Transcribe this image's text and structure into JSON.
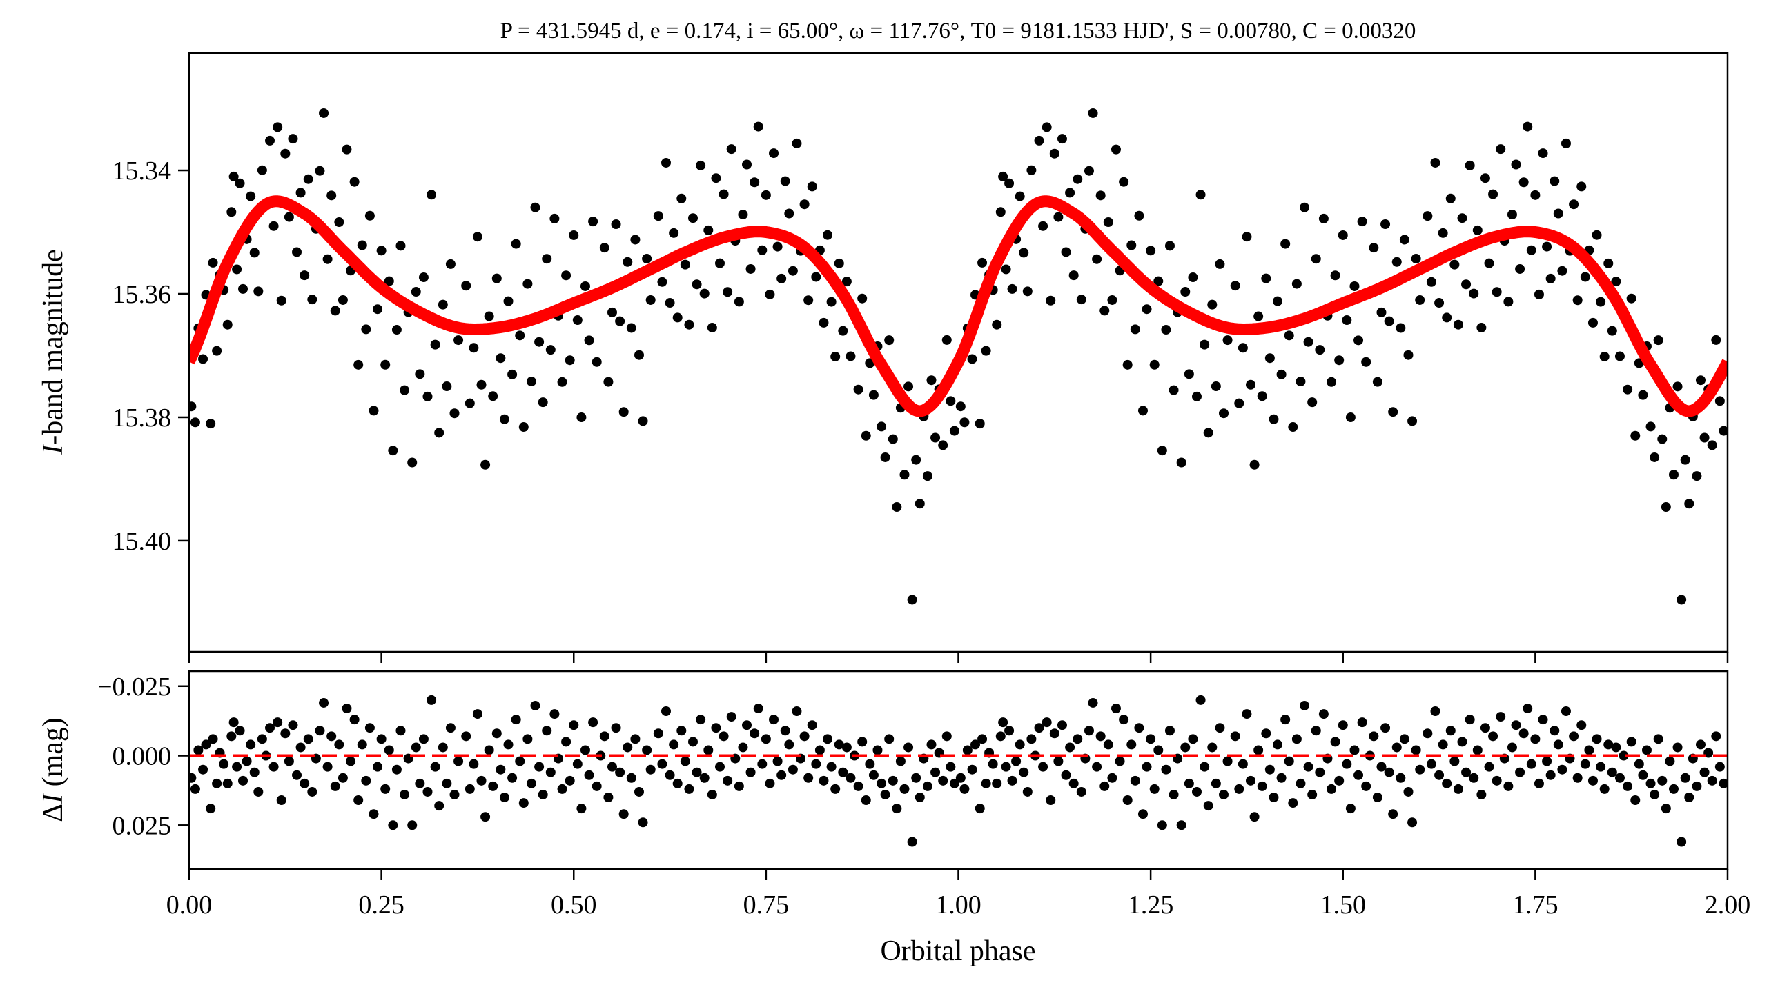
{
  "chart_data": [
    {
      "type": "scatter",
      "panel": "light-curve",
      "title": "P = 431.5945 d, e = 0.174, i = 65.00°, ω = 117.76°, T0 = 9181.1533 HJD', S = 0.00780, C = 0.00320",
      "xlabel": "Orbital phase",
      "ylabel_italic": "I",
      "ylabel_rest": "-band magnitude",
      "xlim": [
        0,
        2
      ],
      "ylim": [
        15.418,
        15.321
      ],
      "yticks": [
        "15.34",
        "15.36",
        "15.38",
        "15.40"
      ],
      "ytick_values": [
        15.34,
        15.36,
        15.38,
        15.4
      ],
      "xtick_values": [
        0,
        0.25,
        0.5,
        0.75,
        1,
        1.25,
        1.5,
        1.75,
        2
      ],
      "point_color": "#000000",
      "model_color": "#ff0000",
      "model_phase": [
        0,
        0.05,
        0.1,
        0.15,
        0.2,
        0.25,
        0.3,
        0.35,
        0.4,
        0.45,
        0.5,
        0.55,
        0.6,
        0.65,
        0.7,
        0.75,
        0.8,
        0.85,
        0.9,
        0.95,
        1.0
      ],
      "model_mag": [
        15.371,
        15.355,
        15.3455,
        15.347,
        15.353,
        15.359,
        15.363,
        15.3655,
        15.3655,
        15.364,
        15.3615,
        15.359,
        15.356,
        15.353,
        15.3507,
        15.35,
        15.3525,
        15.36,
        15.3715,
        15.379,
        15.371
      ],
      "note": "points = model + residual, repeated at phase+1"
    },
    {
      "type": "scatter",
      "panel": "residuals",
      "ylabel_delta": "Δ",
      "ylabel_italic": "I",
      "ylabel_rest": " (mag)",
      "xlabel": "Orbital phase",
      "xlim": [
        0,
        2
      ],
      "ylim": [
        0.0408,
        -0.0304
      ],
      "yticks": [
        "−0.025",
        "0.000",
        "0.025"
      ],
      "ytick_values": [
        -0.025,
        0,
        0.025
      ],
      "xticks": [
        "0.00",
        "0.25",
        "0.50",
        "0.75",
        "1.00",
        "1.25",
        "1.50",
        "1.75",
        "2.00"
      ],
      "zero_line_color": "#ff0000",
      "points": [
        [
          0.003,
          0.008
        ],
        [
          0.008,
          0.012
        ],
        [
          0.012,
          -0.002
        ],
        [
          0.018,
          0.005
        ],
        [
          0.022,
          -0.004
        ],
        [
          0.028,
          0.019
        ],
        [
          0.031,
          -0.006
        ],
        [
          0.036,
          0.01
        ],
        [
          0.04,
          -0.001
        ],
        [
          0.045,
          0.003
        ],
        [
          0.05,
          0.01
        ],
        [
          0.055,
          -0.007
        ],
        [
          0.058,
          -0.012
        ],
        [
          0.062,
          0.004
        ],
        [
          0.066,
          -0.009
        ],
        [
          0.07,
          0.009
        ],
        [
          0.075,
          0.002
        ],
        [
          0.08,
          -0.004
        ],
        [
          0.085,
          0.006
        ],
        [
          0.09,
          0.013
        ],
        [
          0.095,
          -0.006
        ],
        [
          0.1,
          0.0
        ],
        [
          0.105,
          -0.01
        ],
        [
          0.11,
          0.004
        ],
        [
          0.115,
          -0.012
        ],
        [
          0.12,
          0.016
        ],
        [
          0.125,
          -0.008
        ],
        [
          0.13,
          0.002
        ],
        [
          0.135,
          -0.011
        ],
        [
          0.14,
          0.007
        ],
        [
          0.145,
          -0.003
        ],
        [
          0.15,
          0.01
        ],
        [
          0.155,
          -0.006
        ],
        [
          0.16,
          0.013
        ],
        [
          0.165,
          0.001
        ],
        [
          0.17,
          -0.009
        ],
        [
          0.175,
          -0.019
        ],
        [
          0.18,
          0.004
        ],
        [
          0.185,
          -0.007
        ],
        [
          0.19,
          0.011
        ],
        [
          0.195,
          -0.004
        ],
        [
          0.2,
          0.008
        ],
        [
          0.205,
          -0.017
        ],
        [
          0.21,
          0.002
        ],
        [
          0.215,
          -0.013
        ],
        [
          0.22,
          0.016
        ],
        [
          0.225,
          -0.004
        ],
        [
          0.23,
          0.009
        ],
        [
          0.235,
          -0.01
        ],
        [
          0.24,
          0.021
        ],
        [
          0.245,
          0.004
        ],
        [
          0.25,
          -0.006
        ],
        [
          0.255,
          0.012
        ],
        [
          0.26,
          -0.002
        ],
        [
          0.265,
          0.025
        ],
        [
          0.27,
          0.005
        ],
        [
          0.275,
          -0.009
        ],
        [
          0.28,
          0.014
        ],
        [
          0.285,
          0.001
        ],
        [
          0.29,
          0.025
        ],
        [
          0.295,
          -0.003
        ],
        [
          0.3,
          0.01
        ],
        [
          0.305,
          -0.006
        ],
        [
          0.31,
          0.013
        ],
        [
          0.315,
          -0.02
        ],
        [
          0.32,
          0.004
        ],
        [
          0.325,
          0.018
        ],
        [
          0.33,
          -0.003
        ],
        [
          0.335,
          0.01
        ],
        [
          0.34,
          -0.01
        ],
        [
          0.345,
          0.014
        ],
        [
          0.35,
          0.002
        ],
        [
          0.36,
          -0.007
        ],
        [
          0.365,
          0.012
        ],
        [
          0.37,
          0.003
        ],
        [
          0.375,
          -0.015
        ],
        [
          0.38,
          0.009
        ],
        [
          0.385,
          0.022
        ],
        [
          0.39,
          -0.002
        ],
        [
          0.395,
          0.011
        ],
        [
          0.4,
          -0.008
        ],
        [
          0.405,
          0.005
        ],
        [
          0.41,
          0.015
        ],
        [
          0.415,
          -0.004
        ],
        [
          0.42,
          0.008
        ],
        [
          0.425,
          -0.013
        ],
        [
          0.43,
          0.002
        ],
        [
          0.435,
          0.017
        ],
        [
          0.44,
          -0.006
        ],
        [
          0.445,
          0.01
        ],
        [
          0.45,
          -0.018
        ],
        [
          0.455,
          0.004
        ],
        [
          0.46,
          0.014
        ],
        [
          0.465,
          -0.009
        ],
        [
          0.47,
          0.006
        ],
        [
          0.475,
          -0.015
        ],
        [
          0.48,
          0.001
        ],
        [
          0.485,
          0.012
        ],
        [
          0.49,
          -0.005
        ],
        [
          0.495,
          0.009
        ],
        [
          0.5,
          -0.011
        ],
        [
          0.505,
          0.003
        ],
        [
          0.51,
          0.019
        ],
        [
          0.515,
          -0.002
        ],
        [
          0.52,
          0.007
        ],
        [
          0.525,
          -0.012
        ],
        [
          0.53,
          0.011
        ],
        [
          0.535,
          0.0
        ],
        [
          0.54,
          -0.007
        ],
        [
          0.545,
          0.015
        ],
        [
          0.55,
          0.004
        ],
        [
          0.555,
          -0.01
        ],
        [
          0.56,
          0.006
        ],
        [
          0.565,
          0.021
        ],
        [
          0.57,
          -0.003
        ],
        [
          0.575,
          0.008
        ],
        [
          0.58,
          -0.006
        ],
        [
          0.585,
          0.013
        ],
        [
          0.59,
          0.024
        ],
        [
          0.595,
          -0.002
        ],
        [
          0.6,
          0.005
        ],
        [
          0.61,
          -0.008
        ],
        [
          0.615,
          0.003
        ],
        [
          0.62,
          -0.016
        ],
        [
          0.625,
          0.007
        ],
        [
          0.63,
          -0.004
        ],
        [
          0.635,
          0.01
        ],
        [
          0.64,
          -0.009
        ],
        [
          0.645,
          0.002
        ],
        [
          0.65,
          0.012
        ],
        [
          0.655,
          -0.005
        ],
        [
          0.66,
          0.006
        ],
        [
          0.665,
          -0.013
        ],
        [
          0.67,
          0.008
        ],
        [
          0.675,
          -0.002
        ],
        [
          0.68,
          0.014
        ],
        [
          0.685,
          -0.01
        ],
        [
          0.69,
          0.004
        ],
        [
          0.695,
          -0.007
        ],
        [
          0.7,
          0.009
        ],
        [
          0.705,
          -0.014
        ],
        [
          0.71,
          0.001
        ],
        [
          0.715,
          0.011
        ],
        [
          0.72,
          -0.003
        ],
        [
          0.725,
          -0.011
        ],
        [
          0.73,
          0.006
        ],
        [
          0.735,
          -0.008
        ],
        [
          0.74,
          -0.017
        ],
        [
          0.745,
          0.003
        ],
        [
          0.75,
          -0.006
        ],
        [
          0.755,
          0.01
        ],
        [
          0.76,
          -0.013
        ],
        [
          0.765,
          0.002
        ],
        [
          0.77,
          0.007
        ],
        [
          0.775,
          -0.009
        ],
        [
          0.78,
          -0.004
        ],
        [
          0.785,
          0.005
        ],
        [
          0.79,
          -0.016
        ],
        [
          0.795,
          0.001
        ],
        [
          0.8,
          -0.007
        ],
        [
          0.805,
          0.008
        ],
        [
          0.81,
          -0.011
        ],
        [
          0.815,
          0.003
        ],
        [
          0.82,
          -0.002
        ],
        [
          0.825,
          0.009
        ],
        [
          0.83,
          -0.006
        ],
        [
          0.835,
          0.004
        ],
        [
          0.84,
          0.012
        ],
        [
          0.845,
          -0.004
        ],
        [
          0.85,
          0.006
        ],
        [
          0.855,
          -0.003
        ],
        [
          0.86,
          0.008
        ],
        [
          0.865,
          0.0
        ],
        [
          0.87,
          0.011
        ],
        [
          0.875,
          -0.005
        ],
        [
          0.88,
          0.016
        ],
        [
          0.885,
          0.003
        ],
        [
          0.89,
          0.007
        ],
        [
          0.895,
          -0.002
        ],
        [
          0.9,
          0.01
        ],
        [
          0.905,
          0.014
        ],
        [
          0.91,
          -0.006
        ],
        [
          0.915,
          0.009
        ],
        [
          0.92,
          0.019
        ],
        [
          0.925,
          0.002
        ],
        [
          0.93,
          0.012
        ],
        [
          0.935,
          -0.003
        ],
        [
          0.94,
          0.031
        ],
        [
          0.945,
          0.008
        ],
        [
          0.95,
          0.015
        ],
        [
          0.955,
          0.001
        ],
        [
          0.96,
          0.011
        ],
        [
          0.965,
          -0.004
        ],
        [
          0.97,
          0.006
        ],
        [
          0.975,
          -0.001
        ],
        [
          0.98,
          0.009
        ],
        [
          0.985,
          -0.007
        ],
        [
          0.99,
          0.004
        ],
        [
          0.995,
          0.01
        ]
      ]
    }
  ]
}
